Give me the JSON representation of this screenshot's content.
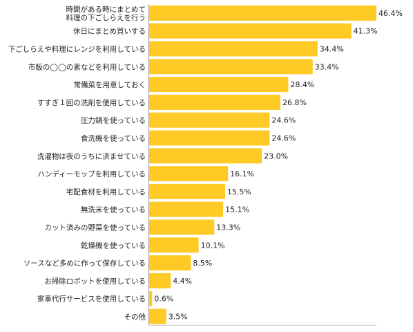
{
  "chart_data": {
    "type": "bar",
    "orientation": "horizontal",
    "categories": [
      [
        "時間がある時にまとめて",
        "料理の下ごしらえを行う"
      ],
      [
        "休日にまとめ買いする"
      ],
      [
        "下ごしらえや料理にレンジを利用している"
      ],
      [
        "市販の◯◯の素などを利用している"
      ],
      [
        "常備菜を用意しておく"
      ],
      [
        "すすぎ１回の洗剤を使用している"
      ],
      [
        "圧力鍋を使っている"
      ],
      [
        "食洗機を使っている"
      ],
      [
        "洗濯物は夜のうちに済ませている"
      ],
      [
        "ハンディーモップを利用している"
      ],
      [
        "宅配食材を利用している"
      ],
      [
        "無洗米を使っている"
      ],
      [
        "カット済みの野菜を使っている"
      ],
      [
        "乾燥機を使っている"
      ],
      [
        "ソースなど多めに作って保存している"
      ],
      [
        "お掃除ロボットを使用している"
      ],
      [
        "家事代行サービスを使用している"
      ],
      [
        "その他"
      ]
    ],
    "values": [
      46.4,
      41.3,
      34.4,
      33.4,
      28.4,
      26.8,
      24.6,
      24.6,
      23.0,
      16.1,
      15.5,
      15.1,
      13.3,
      10.1,
      8.5,
      4.4,
      0.6,
      3.5
    ],
    "value_labels": [
      "46.4%",
      "41.3%",
      "34.4%",
      "33.4%",
      "28.4%",
      "26.8%",
      "24.6%",
      "24.6%",
      "23.0%",
      "16.1%",
      "15.5%",
      "15.1%",
      "13.3%",
      "10.1%",
      "8.5%",
      "4.4%",
      "0.6%",
      "3.5%"
    ],
    "xlim": [
      0,
      46.4
    ],
    "bar_color": "#FFC926",
    "grid": false,
    "legend": false
  }
}
